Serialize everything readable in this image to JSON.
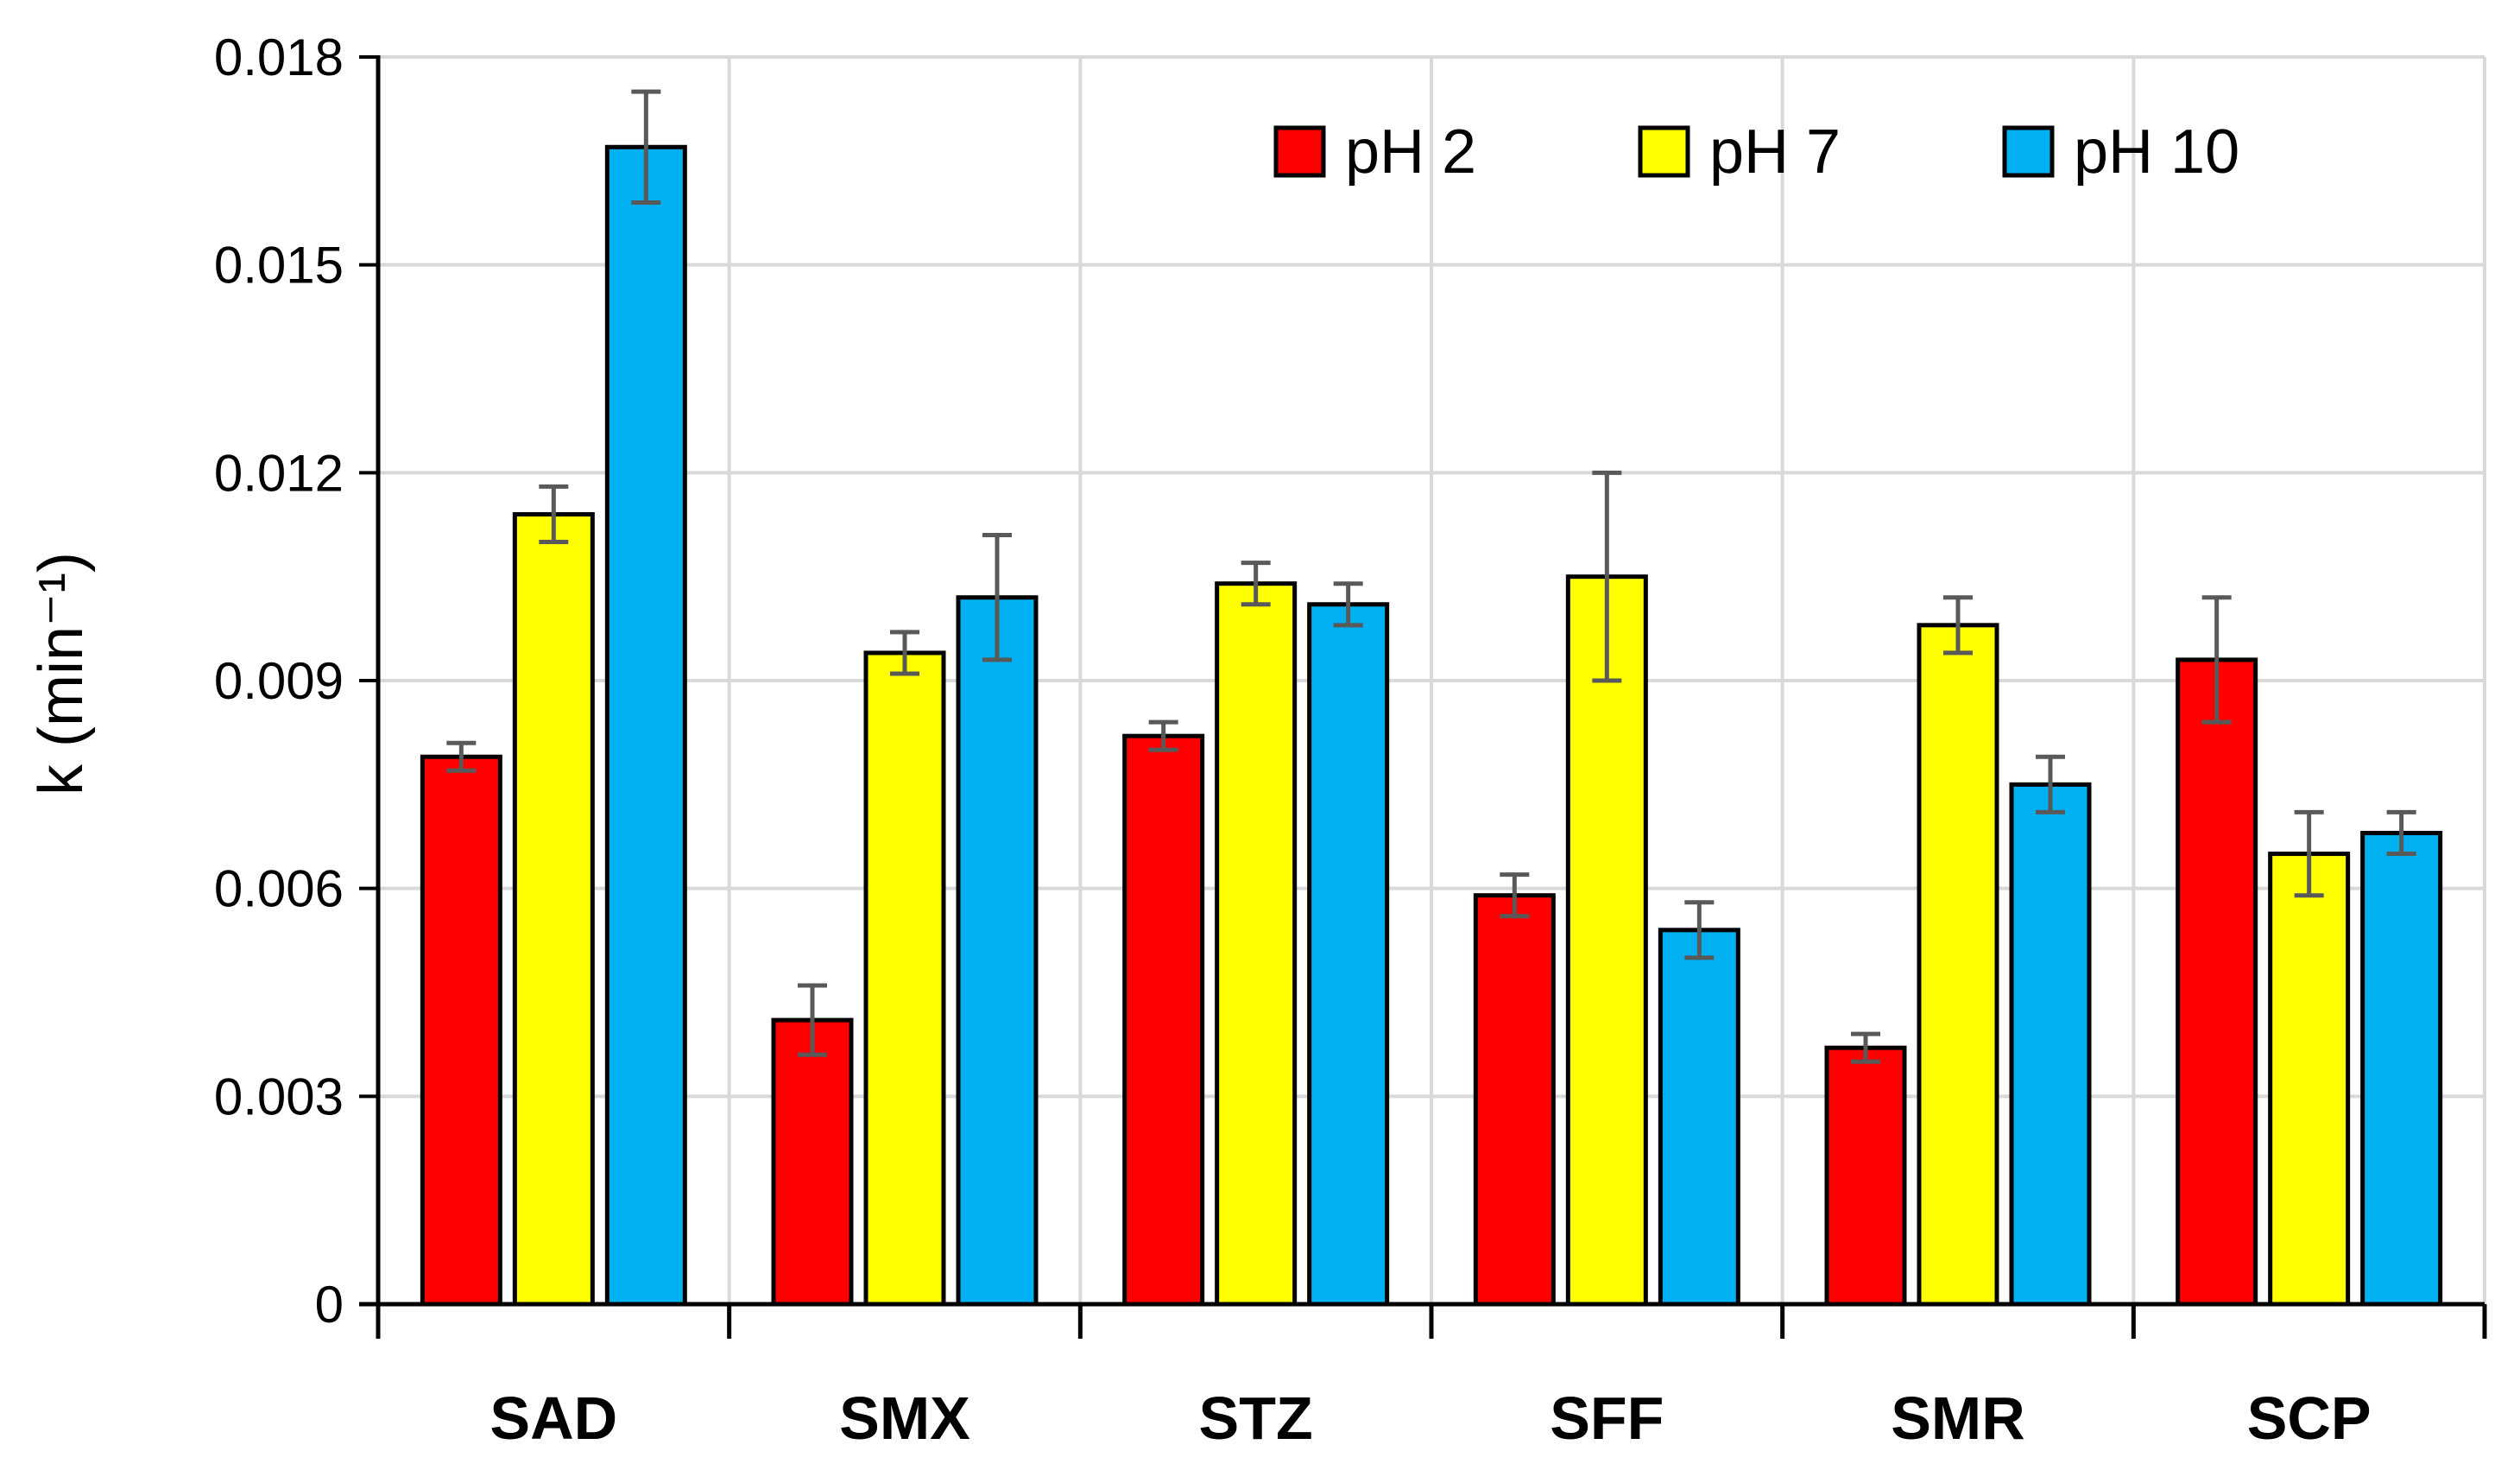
{
  "chart_data": {
    "type": "bar",
    "title": "",
    "xlabel": "",
    "ylabel": "k (min⁻¹)",
    "ylim": [
      0,
      0.018
    ],
    "yticks": [
      0,
      0.003,
      0.006,
      0.009,
      0.012,
      0.015,
      0.018
    ],
    "ytick_labels": [
      "0",
      "0.003",
      "0.006",
      "0.009",
      "0.012",
      "0.015",
      "0.018"
    ],
    "grid": true,
    "legend_position": "top-right",
    "categories": [
      "SAD",
      "SMX",
      "STZ",
      "SFF",
      "SMR",
      "SCP"
    ],
    "series": [
      {
        "name": "pH 2",
        "color": "#FF0000",
        "values": [
          0.0079,
          0.0041,
          0.0082,
          0.0059,
          0.0037,
          0.0093
        ],
        "errors": [
          0.0002,
          0.0005,
          0.0002,
          0.0003,
          0.0002,
          0.0009
        ]
      },
      {
        "name": "pH 7",
        "color": "#FFFF00",
        "values": [
          0.0114,
          0.0094,
          0.0104,
          0.0105,
          0.0098,
          0.0065
        ],
        "errors": [
          0.0004,
          0.0003,
          0.0003,
          0.0015,
          0.0004,
          0.0006
        ]
      },
      {
        "name": "pH 10",
        "color": "#00B0F0",
        "values": [
          0.0167,
          0.0102,
          0.0101,
          0.0054,
          0.0075,
          0.0068
        ],
        "errors": [
          0.0008,
          0.0009,
          0.0003,
          0.0004,
          0.0004,
          0.0003
        ]
      }
    ]
  }
}
